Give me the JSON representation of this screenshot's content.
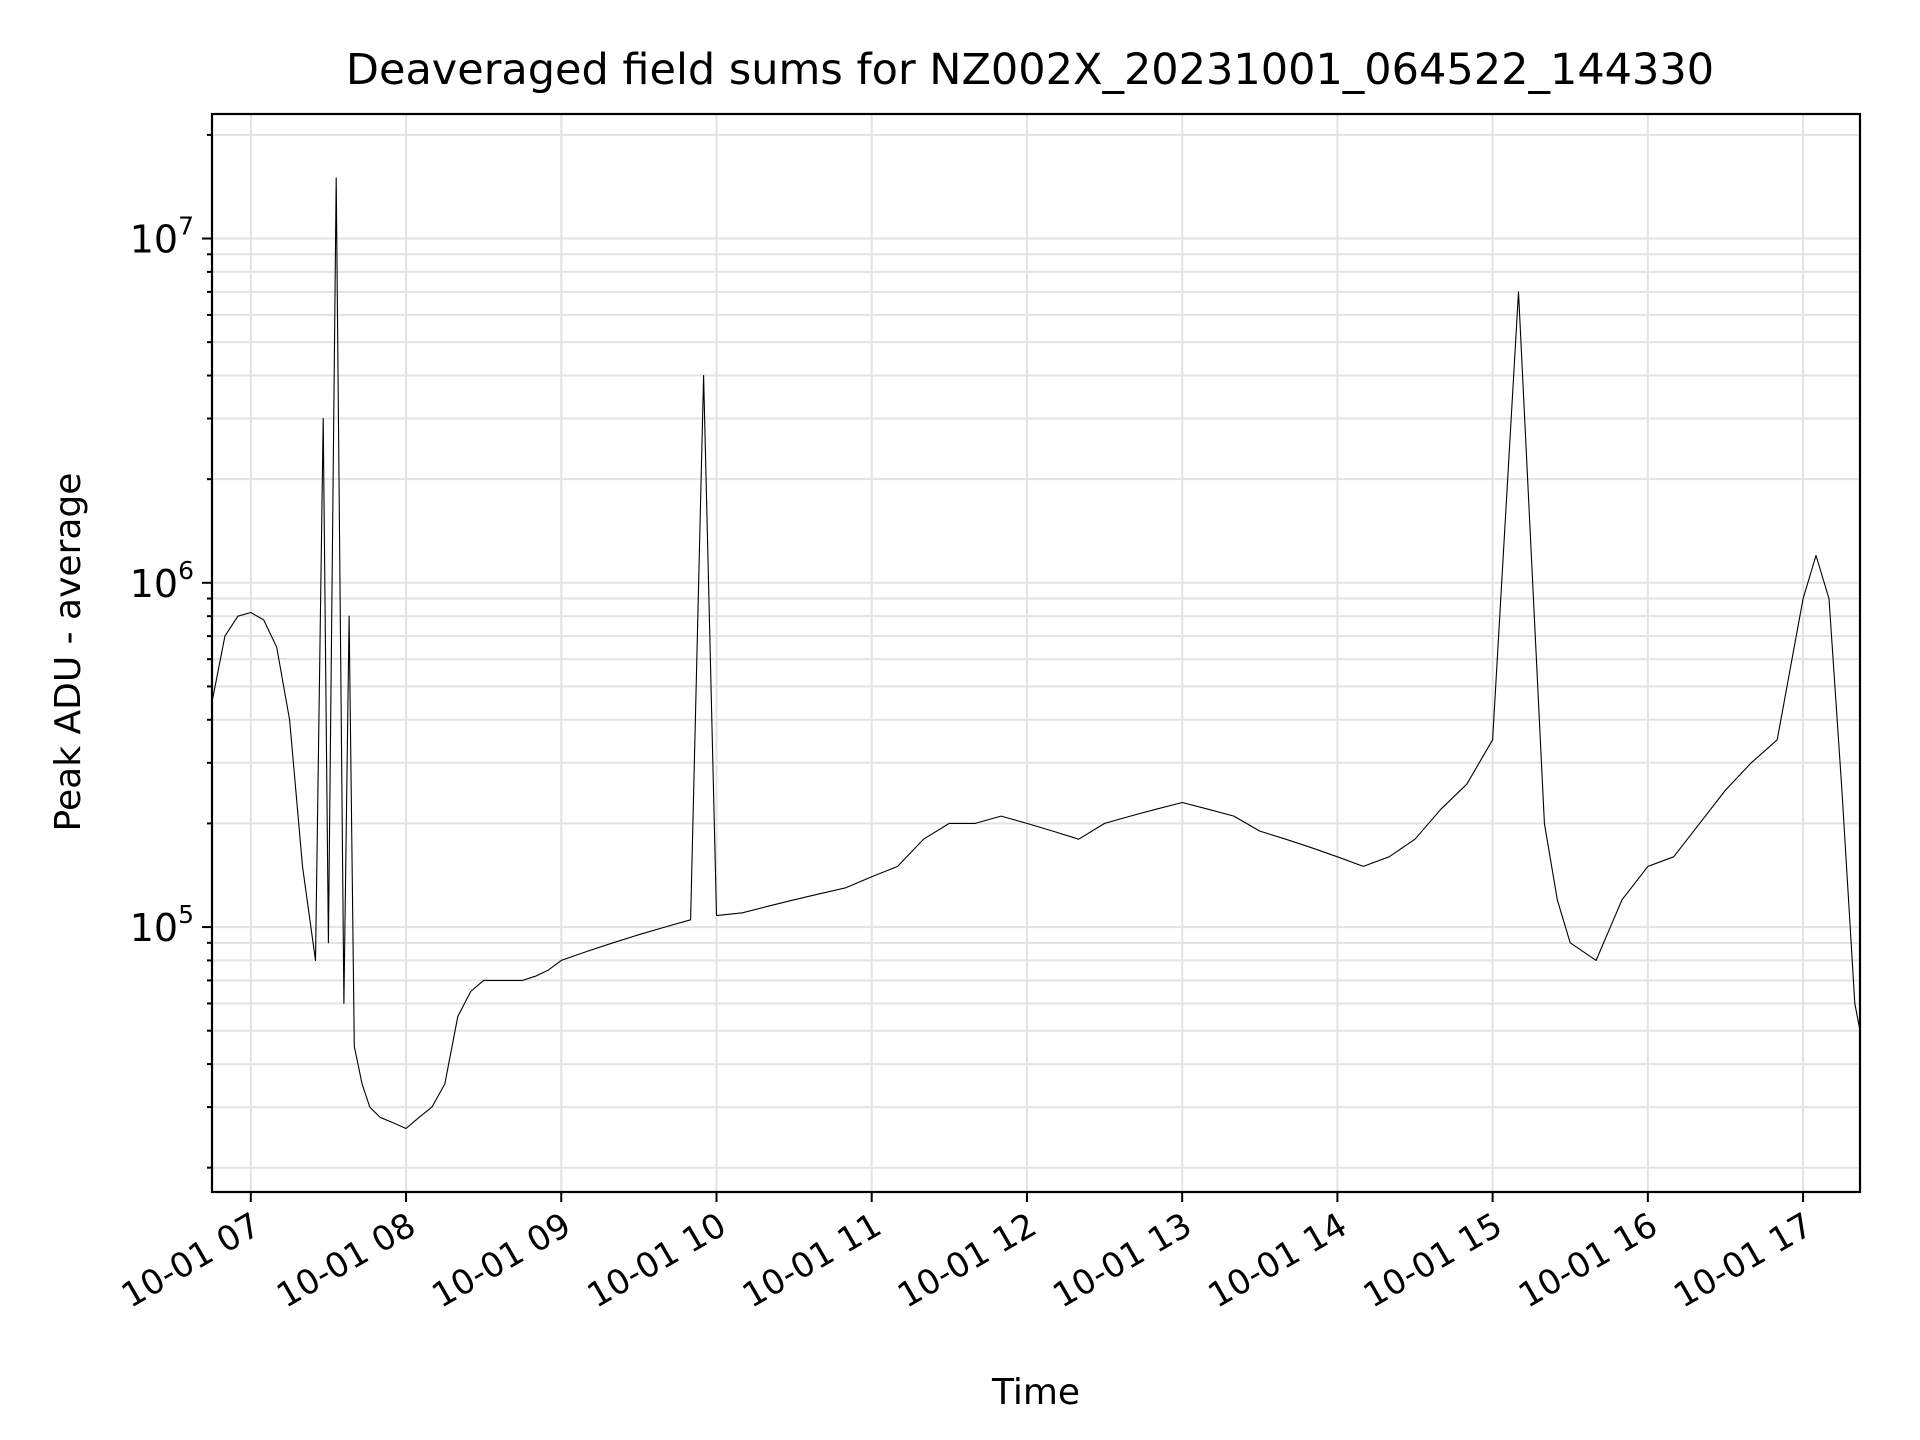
{
  "chart_data": {
    "type": "line",
    "title": "Deaveraged field sums for NZ002X_20231001_064522_144330",
    "xlabel": "Time",
    "ylabel": "Peak ADU - average",
    "yscale": "log",
    "grid": true,
    "xlim": [
      "2023-10-01 06:45",
      "2023-10-01 17:22"
    ],
    "ylim": [
      17000,
      23000000
    ],
    "x_ticks": [
      {
        "label": "10-01 07",
        "hour": 7
      },
      {
        "label": "10-01 08",
        "hour": 8
      },
      {
        "label": "10-01 09",
        "hour": 9
      },
      {
        "label": "10-01 10",
        "hour": 10
      },
      {
        "label": "10-01 11",
        "hour": 11
      },
      {
        "label": "10-01 12",
        "hour": 12
      },
      {
        "label": "10-01 13",
        "hour": 13
      },
      {
        "label": "10-01 14",
        "hour": 14
      },
      {
        "label": "10-01 15",
        "hour": 15
      },
      {
        "label": "10-01 16",
        "hour": 16
      },
      {
        "label": "10-01 17",
        "hour": 17
      }
    ],
    "y_ticks": [
      {
        "base": "10",
        "exp": "5",
        "value": 100000
      },
      {
        "base": "10",
        "exp": "6",
        "value": 1000000
      },
      {
        "base": "10",
        "exp": "7",
        "value": 10000000
      }
    ],
    "series": [
      {
        "color": "#000000",
        "x": [
          "06:45",
          "06:50",
          "06:55",
          "07:00",
          "07:05",
          "07:10",
          "07:15",
          "07:20",
          "07:25",
          "07:28",
          "07:30",
          "07:33",
          "07:36",
          "07:38",
          "07:40",
          "07:43",
          "07:46",
          "07:50",
          "07:55",
          "08:00",
          "08:05",
          "08:10",
          "08:15",
          "08:20",
          "08:25",
          "08:30",
          "08:35",
          "08:40",
          "08:45",
          "08:50",
          "08:55",
          "09:00",
          "09:10",
          "09:20",
          "09:30",
          "09:40",
          "09:50",
          "09:55",
          "10:00",
          "10:10",
          "10:20",
          "10:30",
          "10:40",
          "10:50",
          "11:00",
          "11:10",
          "11:20",
          "11:30",
          "11:40",
          "11:50",
          "12:00",
          "12:10",
          "12:20",
          "12:30",
          "12:40",
          "12:50",
          "13:00",
          "13:10",
          "13:20",
          "13:30",
          "13:40",
          "13:50",
          "14:00",
          "14:10",
          "14:20",
          "14:30",
          "14:40",
          "14:50",
          "15:00",
          "15:10",
          "15:20",
          "15:25",
          "15:30",
          "15:40",
          "15:50",
          "16:00",
          "16:10",
          "16:20",
          "16:30",
          "16:40",
          "16:50",
          "17:00",
          "17:05",
          "17:10",
          "17:15",
          "17:20",
          "17:22"
        ],
        "y": [
          450000,
          700000,
          800000,
          820000,
          780000,
          650000,
          400000,
          150000,
          80000,
          3000000,
          90000,
          15000000,
          60000,
          800000,
          45000,
          35000,
          30000,
          28000,
          27000,
          26000,
          28000,
          30000,
          35000,
          55000,
          65000,
          70000,
          70000,
          70000,
          70000,
          72000,
          75000,
          80000,
          85000,
          90000,
          95000,
          100000,
          105000,
          4000000,
          108000,
          110000,
          115000,
          120000,
          125000,
          130000,
          140000,
          150000,
          180000,
          200000,
          200000,
          210000,
          200000,
          190000,
          180000,
          200000,
          210000,
          220000,
          230000,
          220000,
          210000,
          190000,
          180000,
          170000,
          160000,
          150000,
          160000,
          180000,
          220000,
          260000,
          350000,
          7000000,
          200000,
          120000,
          90000,
          80000,
          120000,
          150000,
          160000,
          200000,
          250000,
          300000,
          350000,
          900000,
          1200000,
          900000,
          250000,
          60000,
          50000
        ]
      }
    ]
  }
}
